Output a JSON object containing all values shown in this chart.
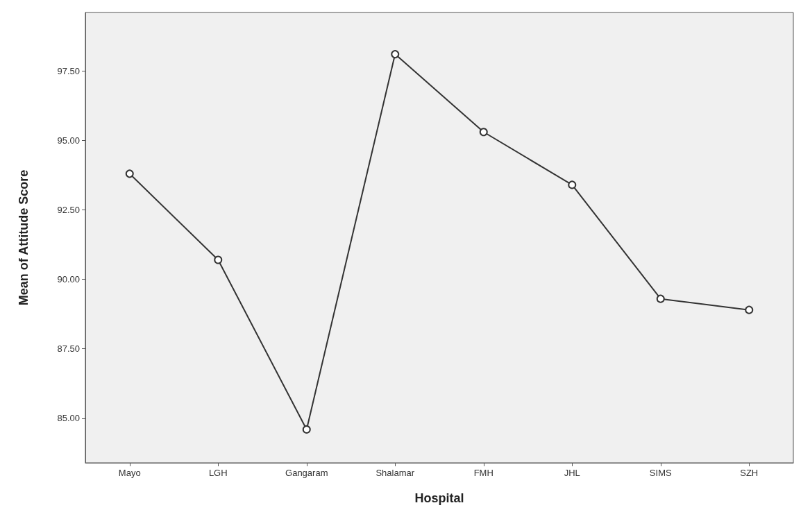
{
  "chart_data": {
    "type": "line",
    "xlabel": "Hospital",
    "ylabel": "Mean of Attitude Score",
    "categories": [
      "Mayo",
      "LGH",
      "Gangaram",
      "Shalamar",
      "FMH",
      "JHL",
      "SIMS",
      "SZH"
    ],
    "series": [
      {
        "color": "#333333",
        "values": [
          93.8,
          90.7,
          84.6,
          98.1,
          95.3,
          93.4,
          89.3,
          88.9
        ]
      }
    ],
    "ylim": [
      83.4,
      99.6
    ],
    "yticks": [
      {
        "value": 85,
        "label": "85.00"
      },
      {
        "value": 87.5,
        "label": "87.50"
      },
      {
        "value": 90,
        "label": "90.00"
      },
      {
        "value": 92.5,
        "label": "92.50"
      },
      {
        "value": 95,
        "label": "95.00"
      },
      {
        "value": 97.5,
        "label": "97.50"
      }
    ],
    "marker": "circle",
    "line_style": "solid",
    "grid": false
  }
}
